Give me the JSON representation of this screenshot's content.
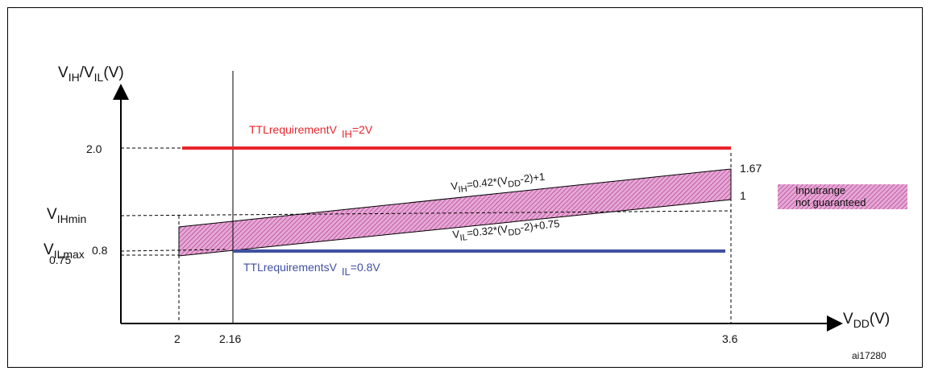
{
  "figure_id": "ai17280",
  "axes": {
    "y_label_main": "V",
    "y_label_sub1": "IH",
    "y_label_mid": "/V",
    "y_label_sub2": "IL",
    "y_label_unit": "(V)",
    "x_label_main": "V",
    "x_label_sub": "DD",
    "x_label_unit": "(V)"
  },
  "y_ticks": {
    "t_2_0": "2.0",
    "t_0_8": "0.8",
    "t_0_75": "0.75",
    "vihmin_main": "V",
    "vihmin_sub": "IHmin",
    "vilmax_main": "V",
    "vilmax_sub": "ILmax"
  },
  "x_ticks": {
    "t_2": "2",
    "t_2_16": "2.16",
    "t_3_6": "3.6"
  },
  "right_values": {
    "v_1_67": "1.67",
    "v_1": "1"
  },
  "annotations": {
    "ttl_vih_main": "TTLrequirementV",
    "ttl_vih_sub": "IH",
    "ttl_vih_tail": "=2V",
    "ttl_vil_main": "TTLrequirementsV",
    "ttl_vil_sub": "IL",
    "ttl_vil_tail": "=0.8V",
    "vih_eq_a": "V",
    "vih_eq_b": "IH",
    "vih_eq_c": "=0.42*(V",
    "vih_eq_d": "DD",
    "vih_eq_e": "-2)+1",
    "vil_eq_a": "V",
    "vil_eq_b": "IL",
    "vil_eq_c": "=0.32*(V",
    "vil_eq_d": "DD",
    "vil_eq_e": "-2)+0.75"
  },
  "legend": {
    "line1": "Inputrange",
    "line2": "not guaranteed"
  },
  "colors": {
    "ttl_vih": "#e8262d",
    "ttl_vil": "#4150a0",
    "band_fill": "#d98cc4",
    "band_stripe": "#b0408f"
  }
}
